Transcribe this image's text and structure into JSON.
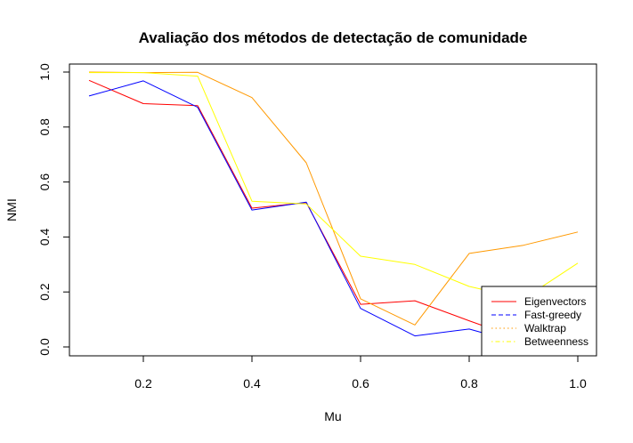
{
  "chart_data": {
    "type": "line",
    "title": "Avaliação dos métodos de detectação de comunidade",
    "xlabel": "Mu",
    "ylabel": "NMI",
    "x": [
      0.1,
      0.2,
      0.3,
      0.4,
      0.5,
      0.6,
      0.7,
      0.8,
      0.9,
      1.0
    ],
    "xlim": [
      0.1,
      1.0
    ],
    "ylim": [
      0.0,
      1.0
    ],
    "x_ticks": [
      "0.2",
      "0.4",
      "0.6",
      "0.8",
      "1.0"
    ],
    "y_ticks": [
      "0.0",
      "0.2",
      "0.4",
      "0.6",
      "0.8",
      "1.0"
    ],
    "grid": false,
    "legend_position": "bottom-right",
    "series": [
      {
        "name": "Eigenvectors",
        "color": "#ff0000",
        "line_style": "solid",
        "values": [
          0.97,
          0.885,
          0.878,
          0.505,
          0.525,
          0.155,
          0.168,
          0.095,
          0.025,
          0.0
        ]
      },
      {
        "name": "Fast-greedy",
        "color": "#0000ff",
        "line_style": "dashed",
        "values": [
          0.913,
          0.968,
          0.872,
          0.498,
          0.527,
          0.14,
          0.04,
          0.065,
          0.01,
          0.0
        ]
      },
      {
        "name": "Walktrap",
        "color": "#ff9900",
        "line_style": "dotted",
        "values": [
          1.0,
          0.998,
          0.999,
          0.907,
          0.67,
          0.175,
          0.08,
          0.34,
          0.37,
          0.418
        ]
      },
      {
        "name": "Betweenness",
        "color": "#ffff00",
        "line_style": "dotdash",
        "values": [
          0.998,
          0.998,
          0.985,
          0.53,
          0.52,
          0.33,
          0.3,
          0.22,
          0.175,
          0.305
        ]
      }
    ]
  }
}
